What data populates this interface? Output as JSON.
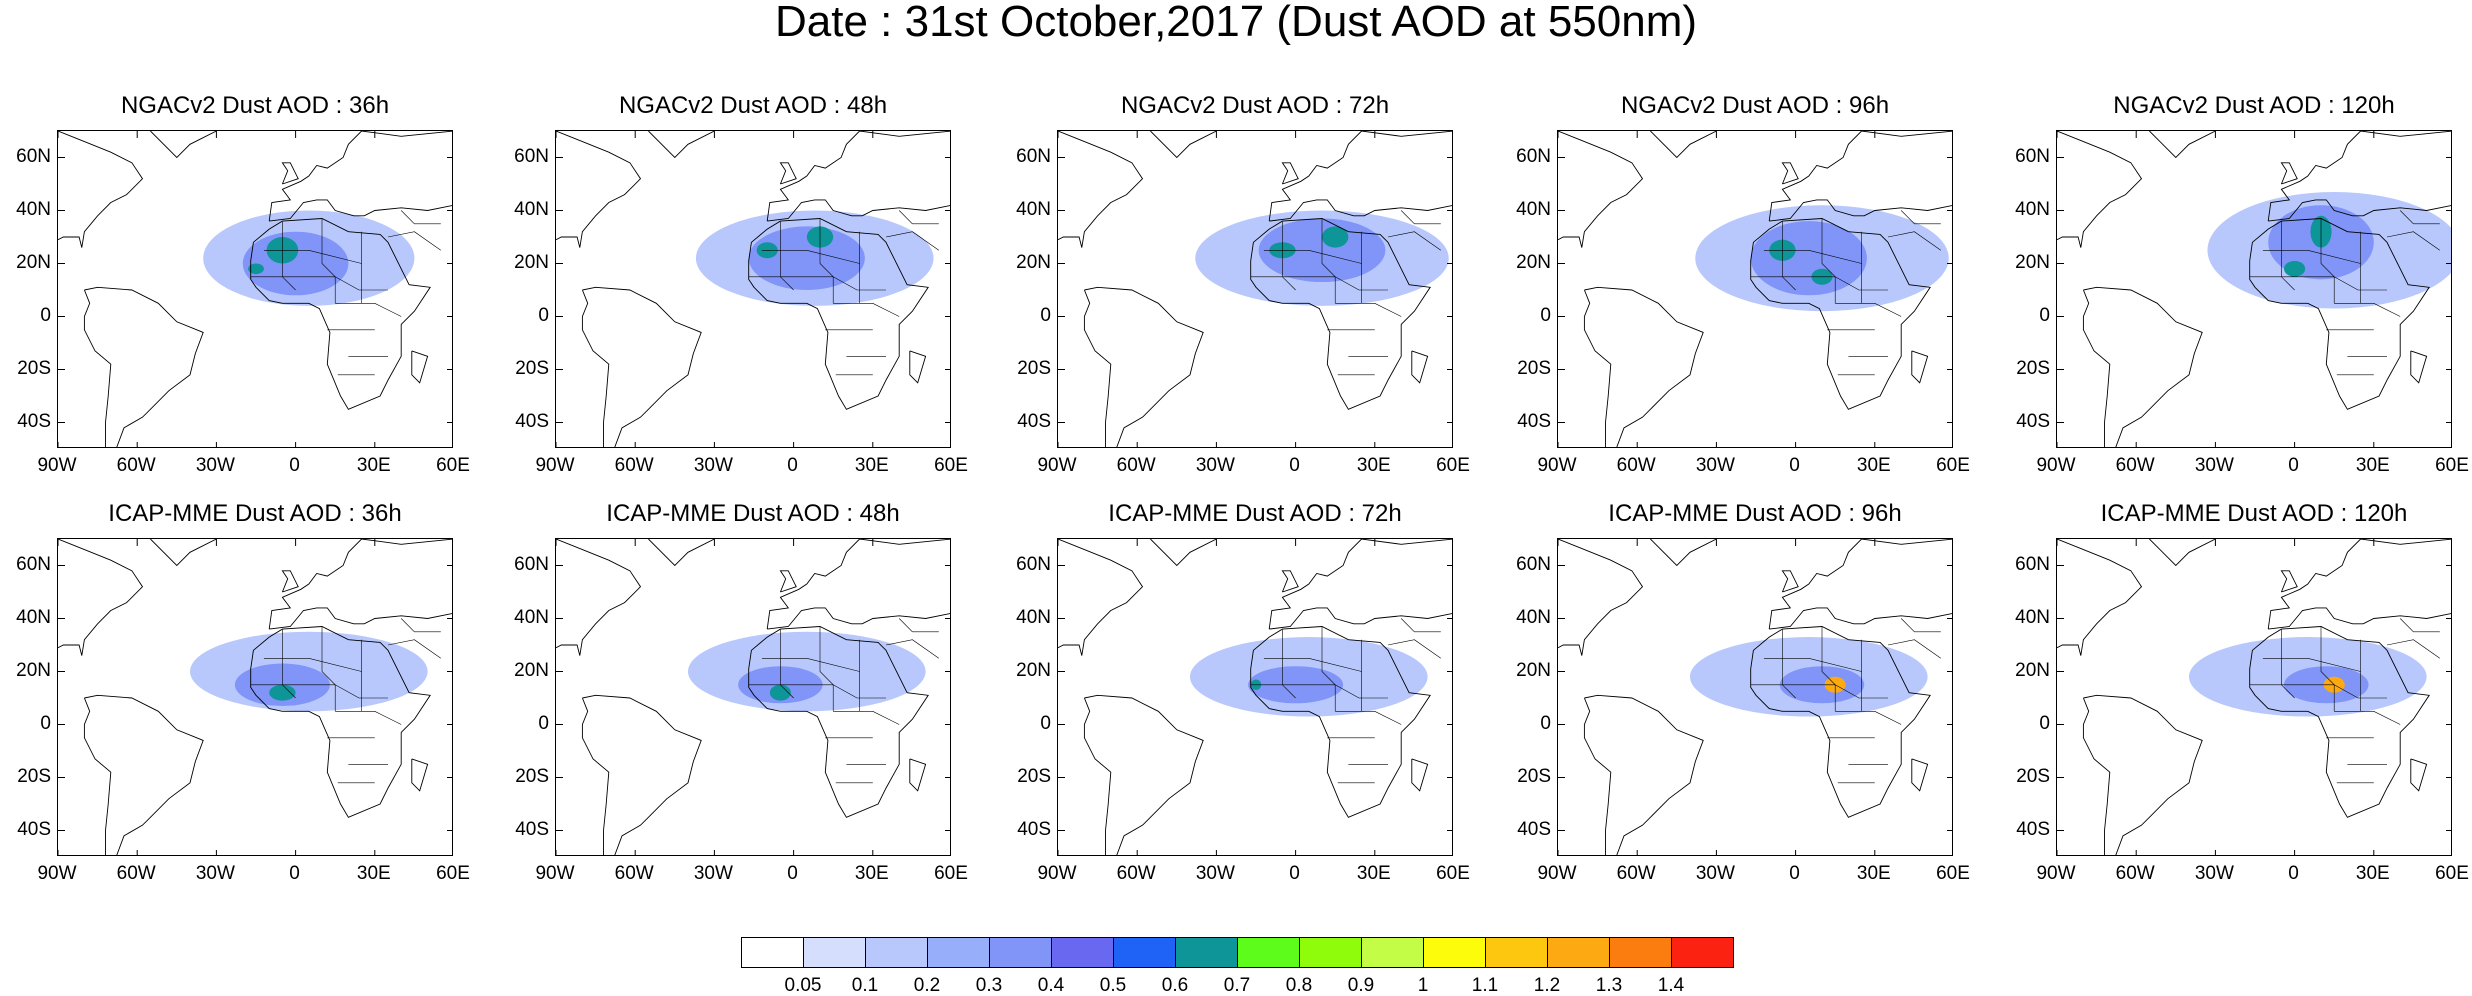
{
  "title": "Date : 31st October,2017 (Dust AOD at 550nm)",
  "lat_labels": [
    "60N",
    "40N",
    "20N",
    "0",
    "20S",
    "40S"
  ],
  "lat_values": [
    60,
    40,
    20,
    0,
    -20,
    -40
  ],
  "lon_labels": [
    "90W",
    "60W",
    "30W",
    "0",
    "30E",
    "60E"
  ],
  "lon_values": [
    -90,
    -60,
    -30,
    0,
    30,
    60
  ],
  "map_extent": {
    "lon_min": -90,
    "lon_max": 60,
    "lat_min": -50,
    "lat_max": 70
  },
  "panels": [
    {
      "title": "NGACv2 Dust AOD : 36h",
      "blobs": [
        {
          "lon": 5,
          "lat": 22,
          "rx": 40,
          "ry": 18,
          "level": 2
        },
        {
          "lon": 0,
          "lat": 20,
          "rx": 20,
          "ry": 12,
          "level": 4
        },
        {
          "lon": -5,
          "lat": 25,
          "rx": 6,
          "ry": 5,
          "level": 7
        },
        {
          "lon": -15,
          "lat": 18,
          "rx": 3,
          "ry": 2,
          "level": 7
        }
      ]
    },
    {
      "title": "NGACv2 Dust AOD : 48h",
      "blobs": [
        {
          "lon": 8,
          "lat": 22,
          "rx": 45,
          "ry": 18,
          "level": 2
        },
        {
          "lon": 5,
          "lat": 22,
          "rx": 22,
          "ry": 12,
          "level": 4
        },
        {
          "lon": 10,
          "lat": 30,
          "rx": 5,
          "ry": 4,
          "level": 7
        },
        {
          "lon": -10,
          "lat": 25,
          "rx": 4,
          "ry": 3,
          "level": 7
        }
      ]
    },
    {
      "title": "NGACv2 Dust AOD : 72h",
      "blobs": [
        {
          "lon": 10,
          "lat": 22,
          "rx": 48,
          "ry": 18,
          "level": 2
        },
        {
          "lon": 10,
          "lat": 25,
          "rx": 24,
          "ry": 12,
          "level": 4
        },
        {
          "lon": 15,
          "lat": 30,
          "rx": 5,
          "ry": 4,
          "level": 7
        },
        {
          "lon": -5,
          "lat": 25,
          "rx": 5,
          "ry": 3,
          "level": 7
        }
      ]
    },
    {
      "title": "NGACv2 Dust AOD : 96h",
      "blobs": [
        {
          "lon": 10,
          "lat": 22,
          "rx": 48,
          "ry": 20,
          "level": 2
        },
        {
          "lon": 5,
          "lat": 22,
          "rx": 22,
          "ry": 14,
          "level": 4
        },
        {
          "lon": -5,
          "lat": 25,
          "rx": 5,
          "ry": 4,
          "level": 7
        },
        {
          "lon": 10,
          "lat": 15,
          "rx": 4,
          "ry": 3,
          "level": 7
        }
      ]
    },
    {
      "title": "NGACv2 Dust AOD : 120h",
      "blobs": [
        {
          "lon": 15,
          "lat": 25,
          "rx": 48,
          "ry": 22,
          "level": 2
        },
        {
          "lon": 10,
          "lat": 28,
          "rx": 20,
          "ry": 14,
          "level": 4
        },
        {
          "lon": 10,
          "lat": 32,
          "rx": 4,
          "ry": 6,
          "level": 7
        },
        {
          "lon": 0,
          "lat": 18,
          "rx": 4,
          "ry": 3,
          "level": 7
        }
      ]
    },
    {
      "title": "ICAP-MME Dust AOD : 36h",
      "blobs": [
        {
          "lon": 5,
          "lat": 20,
          "rx": 45,
          "ry": 15,
          "level": 2
        },
        {
          "lon": -5,
          "lat": 15,
          "rx": 18,
          "ry": 8,
          "level": 4
        },
        {
          "lon": -5,
          "lat": 12,
          "rx": 5,
          "ry": 3,
          "level": 7
        }
      ]
    },
    {
      "title": "ICAP-MME Dust AOD : 48h",
      "blobs": [
        {
          "lon": 5,
          "lat": 20,
          "rx": 45,
          "ry": 15,
          "level": 2
        },
        {
          "lon": -5,
          "lat": 15,
          "rx": 16,
          "ry": 7,
          "level": 4
        },
        {
          "lon": -5,
          "lat": 12,
          "rx": 4,
          "ry": 3,
          "level": 7
        }
      ]
    },
    {
      "title": "ICAP-MME Dust AOD : 72h",
      "blobs": [
        {
          "lon": 5,
          "lat": 18,
          "rx": 45,
          "ry": 15,
          "level": 2
        },
        {
          "lon": 0,
          "lat": 15,
          "rx": 18,
          "ry": 7,
          "level": 4
        },
        {
          "lon": -15,
          "lat": 15,
          "rx": 2,
          "ry": 2,
          "level": 7
        }
      ]
    },
    {
      "title": "ICAP-MME Dust AOD : 96h",
      "blobs": [
        {
          "lon": 5,
          "lat": 18,
          "rx": 45,
          "ry": 15,
          "level": 2
        },
        {
          "lon": 10,
          "lat": 15,
          "rx": 16,
          "ry": 7,
          "level": 4
        },
        {
          "lon": 15,
          "lat": 15,
          "rx": 4,
          "ry": 3,
          "level": 13
        }
      ]
    },
    {
      "title": "ICAP-MME Dust AOD : 120h",
      "blobs": [
        {
          "lon": 5,
          "lat": 18,
          "rx": 45,
          "ry": 15,
          "level": 2
        },
        {
          "lon": 12,
          "lat": 15,
          "rx": 16,
          "ry": 7,
          "level": 4
        },
        {
          "lon": 15,
          "lat": 15,
          "rx": 4,
          "ry": 3,
          "level": 13
        }
      ]
    }
  ],
  "colorbar": {
    "colors": [
      "#ffffff",
      "#d5defc",
      "#b8c8fc",
      "#97aefb",
      "#8095f7",
      "#6968f0",
      "#1e63f5",
      "#0d9597",
      "#5efc1b",
      "#8ffc0b",
      "#c3fd45",
      "#fdfc0a",
      "#fdc70f",
      "#fda912",
      "#fb7d0f",
      "#fb2212"
    ],
    "labels": [
      "0.05",
      "0.1",
      "0.2",
      "0.3",
      "0.4",
      "0.5",
      "0.6",
      "0.7",
      "0.8",
      "0.9",
      "1",
      "1.1",
      "1.2",
      "1.3",
      "1.4"
    ]
  }
}
